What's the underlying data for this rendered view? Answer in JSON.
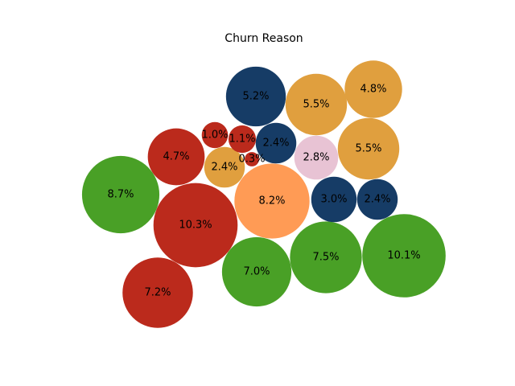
{
  "chart_data": {
    "type": "bubble",
    "title": "Churn Reason",
    "legend": "none",
    "colors": {
      "red": "#bb2a1c",
      "green": "#49a026",
      "navy": "#163c66",
      "gold": "#e09f3e",
      "orange": "#ff9b55",
      "pink": "#e8c3d4"
    },
    "bubbles": [
      {
        "value": 10.3,
        "label": "10.3%",
        "group": "red"
      },
      {
        "value": 10.1,
        "label": "10.1%",
        "group": "green"
      },
      {
        "value": 8.7,
        "label": "8.7%",
        "group": "green"
      },
      {
        "value": 8.2,
        "label": "8.2%",
        "group": "orange"
      },
      {
        "value": 7.5,
        "label": "7.5%",
        "group": "green"
      },
      {
        "value": 7.2,
        "label": "7.2%",
        "group": "red"
      },
      {
        "value": 7.0,
        "label": "7.0%",
        "group": "green"
      },
      {
        "value": 5.5,
        "label": "5.5%",
        "group": "gold"
      },
      {
        "value": 5.5,
        "label": "5.5%",
        "group": "gold"
      },
      {
        "value": 5.2,
        "label": "5.2%",
        "group": "navy"
      },
      {
        "value": 4.8,
        "label": "4.8%",
        "group": "gold"
      },
      {
        "value": 4.7,
        "label": "4.7%",
        "group": "red"
      },
      {
        "value": 3.0,
        "label": "3.0%",
        "group": "navy"
      },
      {
        "value": 2.8,
        "label": "2.8%",
        "group": "pink"
      },
      {
        "value": 2.4,
        "label": "2.4%",
        "group": "navy"
      },
      {
        "value": 2.4,
        "label": "2.4%",
        "group": "navy"
      },
      {
        "value": 2.4,
        "label": "2.4%",
        "group": "gold"
      },
      {
        "value": 1.1,
        "label": "1.1%",
        "group": "red"
      },
      {
        "value": 1.0,
        "label": "1.0%",
        "group": "red"
      },
      {
        "value": 0.3,
        "label": "0.3%",
        "group": "red"
      }
    ]
  }
}
